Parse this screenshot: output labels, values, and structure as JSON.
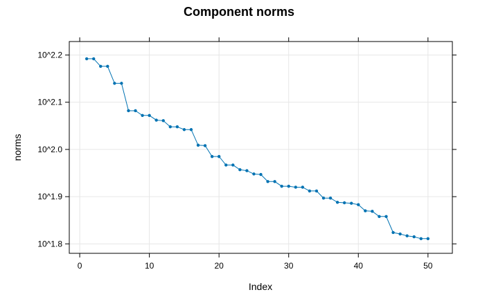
{
  "chart_data": {
    "type": "line",
    "title": "Component norms",
    "xlabel": "Index",
    "ylabel": "norms",
    "xlim": [
      -1.5,
      53.5
    ],
    "ylim": [
      1.78,
      2.2285
    ],
    "y_scale": "log10",
    "x_ticks": [
      0,
      10,
      20,
      30,
      40,
      50
    ],
    "x_tick_labels": [
      "0",
      "10",
      "20",
      "30",
      "40",
      "50"
    ],
    "y_ticks": [
      1.8,
      1.9,
      2.0,
      2.1,
      2.2
    ],
    "y_tick_labels": [
      "10^1.8",
      "10^1.9",
      "10^2.0",
      "10^2.1",
      "10^2.2"
    ],
    "grid": true,
    "color": "#0072b2",
    "x": [
      1,
      2,
      3,
      4,
      5,
      6,
      7,
      8,
      9,
      10,
      11,
      12,
      13,
      14,
      15,
      16,
      17,
      18,
      19,
      20,
      21,
      22,
      23,
      24,
      25,
      26,
      27,
      28,
      29,
      30,
      31,
      32,
      33,
      34,
      35,
      36,
      37,
      38,
      39,
      40,
      41,
      42,
      43,
      44,
      45,
      46,
      47,
      48,
      49,
      50
    ],
    "y": [
      2.192,
      2.192,
      2.176,
      2.176,
      2.14,
      2.14,
      2.082,
      2.082,
      2.072,
      2.072,
      2.062,
      2.061,
      2.048,
      2.048,
      2.042,
      2.042,
      2.009,
      2.008,
      1.985,
      1.985,
      1.967,
      1.967,
      1.957,
      1.955,
      1.948,
      1.947,
      1.932,
      1.932,
      1.922,
      1.922,
      1.92,
      1.92,
      1.912,
      1.912,
      1.897,
      1.897,
      1.888,
      1.887,
      1.886,
      1.883,
      1.87,
      1.869,
      1.858,
      1.858,
      1.824,
      1.821,
      1.817,
      1.815,
      1.811,
      1.811
    ]
  }
}
